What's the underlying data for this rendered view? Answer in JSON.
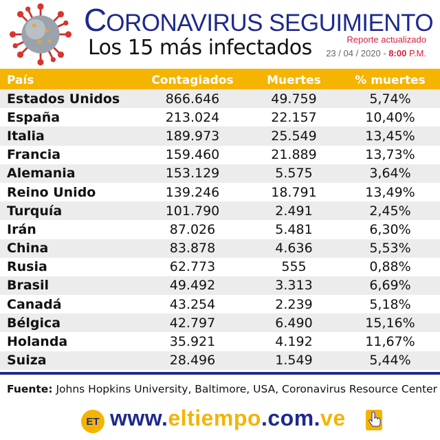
{
  "header": {
    "title_first": "C",
    "title_rest": "ORONAVIRUS SEGUIMIENTO",
    "subtitle": "Los 15 más infectados",
    "report_label": "Reporte actualizado",
    "report_date": "23 / 04 / 2020 -",
    "report_time": "8:00",
    "report_ampm": "P.M."
  },
  "table": {
    "headers": [
      "País",
      "Contagiados",
      "Muertes",
      "% muertes"
    ],
    "rows": [
      [
        "Estados Unidos",
        "866.646",
        "49.759",
        "5,74%"
      ],
      [
        "España",
        "213.024",
        "22.157",
        "10,40%"
      ],
      [
        "Italia",
        "189.973",
        "25.549",
        "13,45%"
      ],
      [
        "Francia",
        "159.460",
        "21.889",
        "13,73%"
      ],
      [
        "Alemania",
        "153.129",
        "5.575",
        "3,64%"
      ],
      [
        "Reino Unido",
        "139.246",
        "18.791",
        "13,49%"
      ],
      [
        "Turquía",
        "101.790",
        "2.491",
        "2,45%"
      ],
      [
        "Irán",
        "87.026",
        "5.481",
        "6,30%"
      ],
      [
        "China",
        "83.878",
        "4.636",
        "5,53%"
      ],
      [
        "Rusia",
        "62.773",
        "555",
        "0,88%"
      ],
      [
        "Brasil",
        "49.492",
        "3.313",
        "6,69%"
      ],
      [
        "Canadá",
        "43.254",
        "2.239",
        "5,18%"
      ],
      [
        "Bélgica",
        "42.797",
        "6.490",
        "15,16%"
      ],
      [
        "Holanda",
        "35.921",
        "4.192",
        "11,67%"
      ],
      [
        "Suiza",
        "28.496",
        "1.549",
        "5,44%"
      ]
    ]
  },
  "footer": {
    "source_label": "Fuente:",
    "source_text": "Johns Hopkins University, Baltimore, USA, Coronavirus Resource Center",
    "logo_text": "ET",
    "url_www": "www.",
    "url_name": "eltiempo",
    "url_com": ".com.",
    "url_ve": "ve"
  },
  "colors": {
    "navy": "#1d2a8c",
    "yellow": "#f4b400",
    "red": "#d6203a"
  },
  "icons": [
    "coronavirus-icon",
    "pointing-hand-icon"
  ]
}
